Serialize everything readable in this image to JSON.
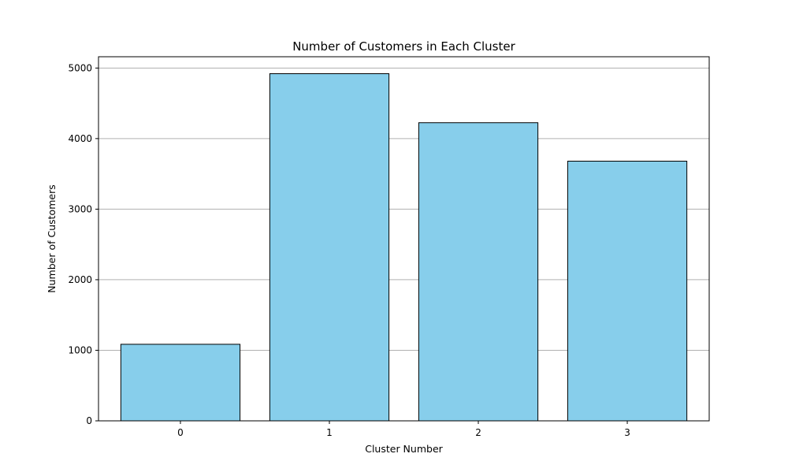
{
  "chart_data": {
    "type": "bar",
    "title": "Number of Customers in Each Cluster",
    "xlabel": "Cluster Number",
    "ylabel": "Number of Customers",
    "categories": [
      "0",
      "1",
      "2",
      "3"
    ],
    "values": [
      1085,
      4920,
      4225,
      3680
    ],
    "ylim": [
      0,
      5160
    ],
    "yticks": [
      0,
      1000,
      2000,
      3000,
      4000,
      5000
    ],
    "grid": "y-axis",
    "legend": "none",
    "bar_color": "#87CEEB",
    "edge_color": "#000000",
    "grid_color": "#b0b0b0"
  }
}
